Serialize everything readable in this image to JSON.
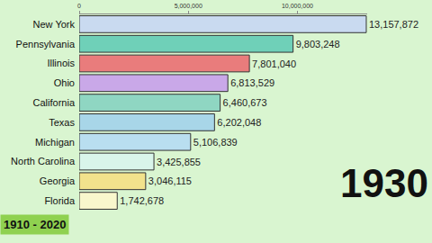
{
  "chart_data": {
    "type": "bar",
    "orientation": "horizontal",
    "categories": [
      "New York",
      "Pennsylvania",
      "Illinois",
      "Ohio",
      "California",
      "Texas",
      "Michigan",
      "North Carolina",
      "Georgia",
      "Florida"
    ],
    "values": [
      13157872,
      9803248,
      7801040,
      6813529,
      6460673,
      6202048,
      5106839,
      3425855,
      3046115,
      1742678
    ],
    "value_labels": [
      "13,157,872",
      "9,803,248",
      "7,801,040",
      "6,813,529",
      "6,460,673",
      "6,202,048",
      "5,106,839",
      "3,425,855",
      "3,046,115",
      "1,742,678"
    ],
    "colors": [
      "#c9daf0",
      "#6fd0b8",
      "#e97c7c",
      "#c9a8e8",
      "#8fd6c2",
      "#a8d6e8",
      "#b9def0",
      "#d9f5ea",
      "#f2e28c",
      "#f9f7cc"
    ],
    "xlim": [
      0,
      13200000
    ],
    "xticks": [
      0,
      {
        "value": 5000000,
        "label": "5,000,000"
      },
      {
        "value": 10000000,
        "label": "10,000,000"
      }
    ],
    "grid": false,
    "data_labels": true,
    "annotations": [
      "1930",
      "1910 - 2020"
    ]
  }
}
